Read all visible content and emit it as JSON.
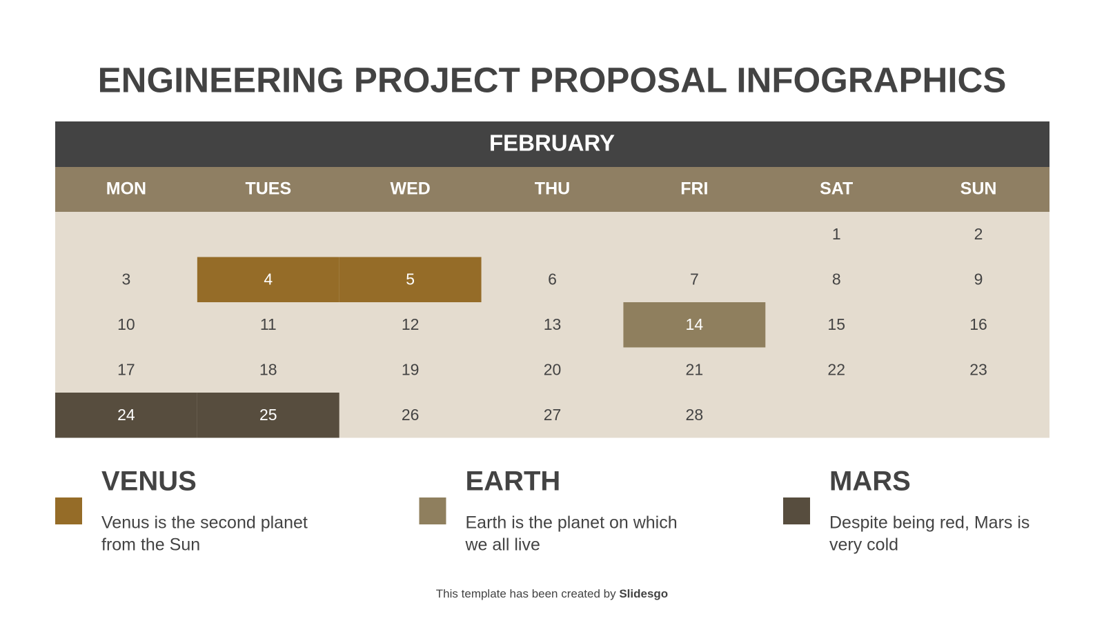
{
  "title": "ENGINEERING PROJECT PROPOSAL INFOGRAPHICS",
  "calendar": {
    "month": "FEBRUARY",
    "weekdays": [
      "MON",
      "TUES",
      "WED",
      "THU",
      "FRI",
      "SAT",
      "SUN"
    ],
    "weeks": [
      [
        null,
        null,
        null,
        null,
        null,
        1,
        2
      ],
      [
        3,
        4,
        5,
        6,
        7,
        8,
        9
      ],
      [
        10,
        11,
        12,
        13,
        14,
        15,
        16
      ],
      [
        17,
        18,
        19,
        20,
        21,
        22,
        23
      ],
      [
        24,
        25,
        26,
        27,
        28,
        null,
        null
      ]
    ],
    "header_color": "#434343",
    "weekday_color": "#8f7f63",
    "cell_color": "#e4dccf"
  },
  "legend": {
    "items": [
      {
        "title": "VENUS",
        "text": [
          "Venus is the second planet",
          "from the Sun"
        ],
        "color": "#956c28",
        "days": [
          4,
          5
        ]
      },
      {
        "title": "EARTH",
        "text": [
          "Earth is the planet on which",
          "we all live"
        ],
        "color": "#8f7f5e",
        "days": [
          14
        ]
      },
      {
        "title": "MARS",
        "text": [
          "Despite being red, Mars is",
          "very cold"
        ],
        "color": "#574d3e",
        "days": [
          24,
          25
        ]
      }
    ]
  },
  "footer": {
    "text": "This template has been created by ",
    "brand": "Slidesgo"
  }
}
